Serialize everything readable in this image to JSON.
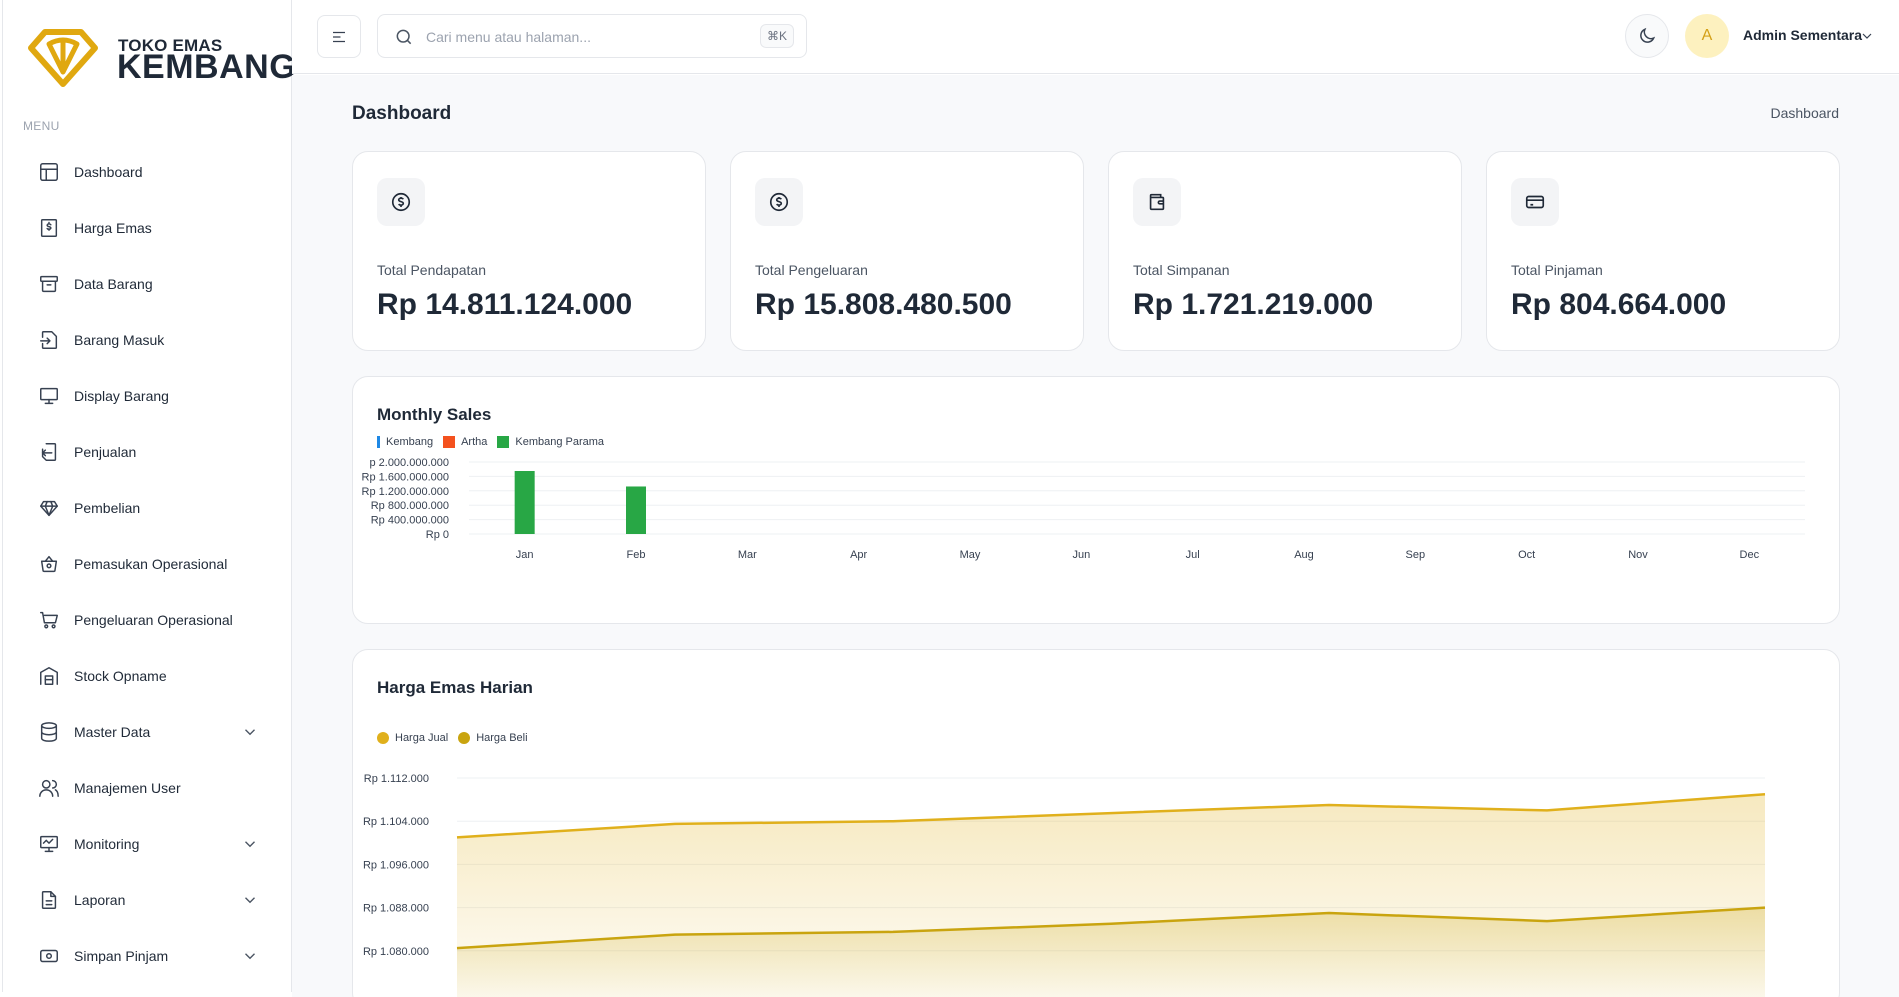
{
  "brand": {
    "top": "TOKO EMAS",
    "main": "KEMBANG",
    "color": "#e0a810"
  },
  "sidebar": {
    "menu_header": "MENU",
    "items": [
      {
        "label": "Dashboard",
        "icon": "layout-icon",
        "has_submenu": false
      },
      {
        "label": "Harga Emas",
        "icon": "dollar-file-icon",
        "has_submenu": false
      },
      {
        "label": "Data Barang",
        "icon": "archive-icon",
        "has_submenu": false
      },
      {
        "label": "Barang Masuk",
        "icon": "file-import-icon",
        "has_submenu": false
      },
      {
        "label": "Display Barang",
        "icon": "monitor-icon",
        "has_submenu": false
      },
      {
        "label": "Penjualan",
        "icon": "file-export-icon",
        "has_submenu": false
      },
      {
        "label": "Pembelian",
        "icon": "diamond-icon",
        "has_submenu": false
      },
      {
        "label": "Pemasukan Operasional",
        "icon": "basket-icon",
        "has_submenu": false
      },
      {
        "label": "Pengeluaran Operasional",
        "icon": "cart-icon",
        "has_submenu": false
      },
      {
        "label": "Stock Opname",
        "icon": "warehouse-icon",
        "has_submenu": false
      },
      {
        "label": "Master Data",
        "icon": "database-icon",
        "has_submenu": true
      },
      {
        "label": "Manajemen User",
        "icon": "users-icon",
        "has_submenu": false
      },
      {
        "label": "Monitoring",
        "icon": "monitor-chart-icon",
        "has_submenu": true
      },
      {
        "label": "Laporan",
        "icon": "file-text-icon",
        "has_submenu": true
      },
      {
        "label": "Simpan Pinjam",
        "icon": "cash-icon",
        "has_submenu": true
      }
    ]
  },
  "header": {
    "search_placeholder": "Cari menu atau halaman...",
    "search_value": "",
    "shortcut": "⌘K",
    "avatar_initial": "A",
    "user_name": "Admin Sementara"
  },
  "page": {
    "title": "Dashboard",
    "breadcrumb": "Dashboard"
  },
  "stats": [
    {
      "label": "Total Pendapatan",
      "value": "Rp 14.811.124.000",
      "icon": "dollar-circle-icon"
    },
    {
      "label": "Total Pengeluaran",
      "value": "Rp 15.808.480.500",
      "icon": "dollar-circle-icon"
    },
    {
      "label": "Total Simpanan",
      "value": "Rp 1.721.219.000",
      "icon": "wallet-icon"
    },
    {
      "label": "Total Pinjaman",
      "value": "Rp 804.664.000",
      "icon": "credit-card-icon"
    }
  ],
  "chart_data": [
    {
      "type": "bar",
      "title": "Monthly Sales",
      "categories": [
        "Jan",
        "Feb",
        "Mar",
        "Apr",
        "May",
        "Jun",
        "Jul",
        "Aug",
        "Sep",
        "Oct",
        "Nov",
        "Dec"
      ],
      "series": [
        {
          "name": "Kembang",
          "color": "#1e88e5",
          "values": [
            0,
            0,
            0,
            0,
            0,
            0,
            0,
            0,
            0,
            0,
            0,
            0
          ]
        },
        {
          "name": "Artha",
          "color": "#f4511e",
          "values": [
            0,
            0,
            0,
            0,
            0,
            0,
            0,
            0,
            0,
            0,
            0,
            0
          ]
        },
        {
          "name": "Kembang Parama",
          "color": "#28a745",
          "values": [
            1750000000,
            1320000000,
            0,
            0,
            0,
            0,
            0,
            0,
            0,
            0,
            0,
            0
          ]
        }
      ],
      "y_ticks": [
        "p 2.000.000.000",
        "Rp 1.600.000.000",
        "Rp 1.200.000.000",
        "Rp 800.000.000",
        "Rp 400.000.000",
        "Rp 0"
      ],
      "ylim": [
        0,
        2000000000
      ],
      "grid": true,
      "legend": "top-left"
    },
    {
      "type": "area",
      "title": "Harga Emas Harian",
      "x": [
        1,
        2,
        3,
        4,
        5,
        6,
        7
      ],
      "series": [
        {
          "name": "Harga Jual",
          "color": "#e0b01c",
          "values": [
            1101000,
            1103500,
            1104000,
            1105500,
            1107000,
            1106000,
            1109000
          ]
        },
        {
          "name": "Harga Beli",
          "color": "#c9a40f",
          "values": [
            1080500,
            1083000,
            1083500,
            1085000,
            1087000,
            1085500,
            1088000
          ]
        }
      ],
      "y_ticks": [
        "Rp 1.112.000",
        "Rp 1.104.000",
        "Rp 1.096.000",
        "Rp 1.088.000",
        "Rp 1.080.000"
      ],
      "ylim": [
        1072000,
        1112000
      ],
      "grid": true,
      "legend": "top-left"
    }
  ]
}
